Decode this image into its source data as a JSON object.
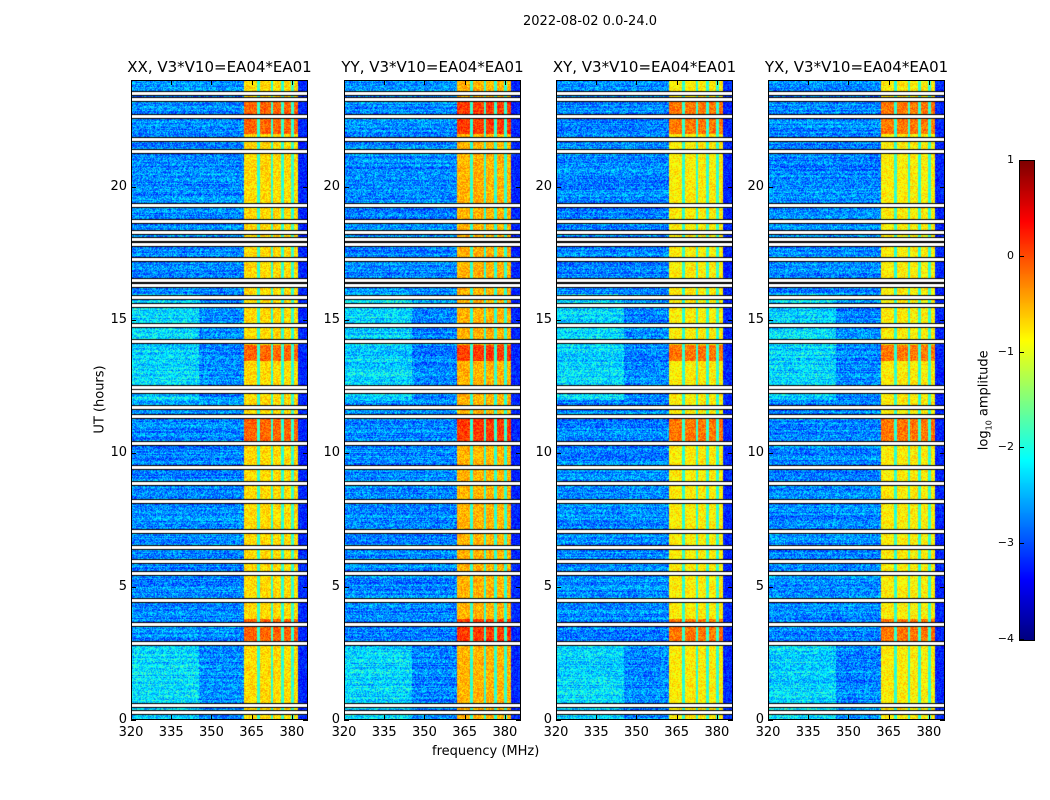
{
  "suptitle": "2022-08-02 0.0-24.0",
  "chart_data": {
    "type": "heatmap",
    "title": "2022-08-02 0.0-24.0",
    "xlabel": "frequency (MHz)",
    "ylabel": "UT (hours)",
    "xlim": [
      320,
      386
    ],
    "ylim": [
      0,
      24
    ],
    "xticks": [
      320,
      335,
      350,
      365,
      380
    ],
    "yticks": [
      0,
      5,
      10,
      15,
      20
    ],
    "panels": [
      {
        "title": "XX, V3*V10=EA04*EA01",
        "band_level": -0.7
      },
      {
        "title": "YY, V3*V10=EA04*EA01",
        "band_level": -0.5
      },
      {
        "title": "XY, V3*V10=EA04*EA01",
        "band_level": -0.8
      },
      {
        "title": "YX, V3*V10=EA04*EA01",
        "band_level": -0.8
      }
    ],
    "background_level": -2.7,
    "bright_band_mhz": [
      362,
      382
    ],
    "band_gaps_mhz": [
      367.3,
      372.3,
      376.3,
      380.0
    ],
    "strong_periods_ut": [
      [
        3.0,
        3.8
      ],
      [
        10.3,
        11.3
      ],
      [
        13.5,
        14.1
      ],
      [
        22.0,
        23.3
      ]
    ],
    "flagged_ut": [
      0.3,
      0.55,
      2.9,
      3.6,
      4.5,
      5.5,
      5.95,
      6.5,
      7.1,
      8.2,
      8.9,
      9.5,
      10.4,
      11.4,
      11.75,
      12.35,
      12.5,
      14.2,
      14.8,
      15.55,
      15.85,
      16.3,
      16.5,
      17.3,
      17.85,
      18.05,
      18.3,
      18.7,
      19.3,
      21.35,
      21.8,
      22.65,
      23.3,
      23.5
    ],
    "colorbar": {
      "label": "log10 amplitude",
      "label_main": "log",
      "label_sub": "10",
      "label_rest": " amplitude",
      "range": [
        -4,
        1
      ],
      "ticks": [
        "1",
        "0",
        "−1",
        "−2",
        "−3",
        "−4"
      ],
      "colormap": "jet"
    }
  }
}
